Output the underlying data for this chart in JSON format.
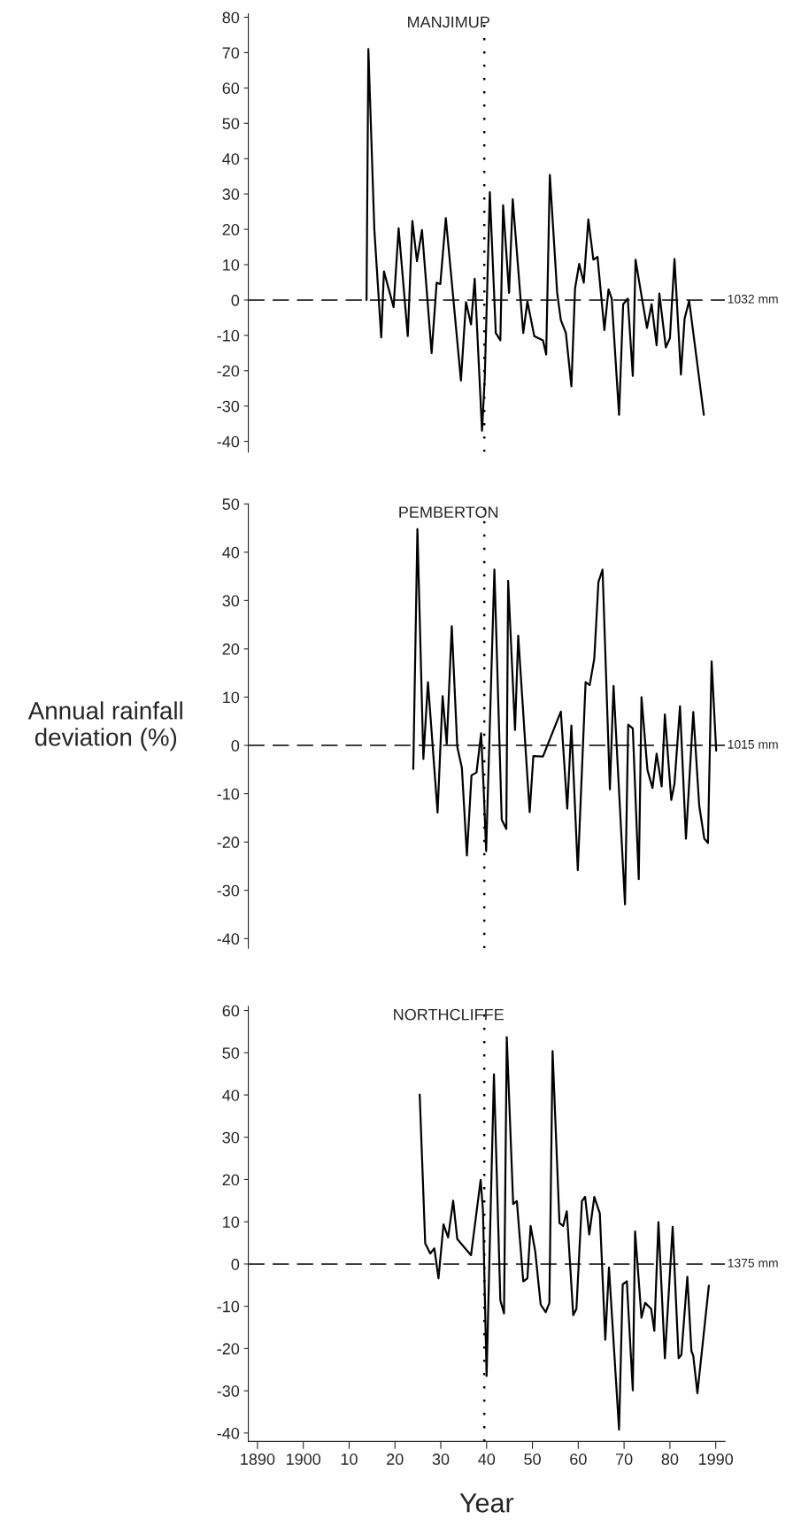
{
  "chart_data": [
    {
      "type": "line",
      "title": "MANJIMUP",
      "tick_labels": "y",
      "grid": false,
      "x": [
        1913.8,
        1914.2,
        1915.5,
        1917,
        1917.6,
        1919.7,
        1920.8,
        1922.8,
        1923.8,
        1924.8,
        1925.9,
        1928,
        1929.1,
        1929.9,
        1931.1,
        1934.4,
        1935.5,
        1936.6,
        1937.4,
        1939,
        1939.6,
        1940.7,
        1942,
        1943,
        1943.6,
        1944.9,
        1945.7,
        1948,
        1948.9,
        1950.4,
        1952.3,
        1953,
        1953.8,
        1955.4,
        1956.2,
        1957.3,
        1958.5,
        1959.3,
        1960.2,
        1961.2,
        1962.2,
        1963.3,
        1964.2,
        1965.7,
        1966.6,
        1967.3,
        1968.9,
        1969.8,
        1970.8,
        1971.9,
        1972.5,
        1973.7,
        1975,
        1976,
        1977.1,
        1977.7,
        1979.1,
        1980,
        1981,
        1982.4,
        1983.2,
        1984.2,
        1987.4
      ],
      "series": [
        {
          "color": "#000000",
          "values": [
            0,
            71,
            20,
            -10.6,
            8.1,
            -2,
            20.3,
            -10.2,
            22.4,
            11,
            19.8,
            -15,
            4.9,
            4.5,
            23.2,
            -22.8,
            -0.6,
            -6.9,
            6,
            -37,
            -22,
            30.5,
            -9.3,
            -11.4,
            26.8,
            2,
            28.5,
            -9.3,
            -0.4,
            -10.2,
            -11.4,
            -15.4,
            35.4,
            2,
            -5.7,
            -9.3,
            -24.4,
            3.3,
            10.2,
            4.9,
            22.8,
            11.4,
            12.2,
            -8.5,
            3,
            0.4,
            -32.5,
            -1.2,
            0.4,
            -21.5,
            11.4,
            2,
            -7.9,
            -1.2,
            -12.8,
            1.8,
            -13.4,
            -10.8,
            11.6,
            -21.1,
            -5.3,
            -0.2,
            -32.5
          ]
        }
      ],
      "xlim": [
        1888,
        1992
      ],
      "ylim": [
        -43,
        81
      ],
      "yticks": [
        -40,
        -30,
        -20,
        -10,
        0,
        10,
        20,
        30,
        40,
        50,
        60,
        70,
        80
      ],
      "ref_lines": [
        {
          "axis": "y",
          "value": 0,
          "label": "1032 mm",
          "line_style": "dashed",
          "color": "#000000"
        },
        {
          "axis": "x",
          "value": 1939.5,
          "line_style": "dotted",
          "color": "#000000"
        }
      ]
    },
    {
      "type": "line",
      "title": "PEMBERTON",
      "tick_labels": "y",
      "grid": false,
      "ylabel": "Annual rainfall\ndeviation (%)",
      "x": [
        1924,
        1924.9,
        1926.2,
        1927.2,
        1929.3,
        1930.4,
        1931.3,
        1932.4,
        1933.6,
        1934.6,
        1935.7,
        1936.7,
        1937.8,
        1938.8,
        1939.4,
        1939.9,
        1941.7,
        1943.3,
        1944.3,
        1944.7,
        1946.2,
        1946.9,
        1949.4,
        1950.2,
        1952.3,
        1956.2,
        1957.6,
        1958.5,
        1959.9,
        1961.6,
        1962.5,
        1963.5,
        1964.4,
        1965.3,
        1966.9,
        1967.7,
        1970.2,
        1970.9,
        1971.9,
        1973.2,
        1973.8,
        1975.1,
        1976.2,
        1977.1,
        1978.2,
        1978.9,
        1980.3,
        1981,
        1982.2,
        1983.5,
        1985.1,
        1986.4,
        1987.5,
        1988.3,
        1989.1,
        1990.1
      ],
      "series": [
        {
          "color": "#000000",
          "values": [
            -4.9,
            44.8,
            -2.8,
            13.1,
            -13.9,
            10.2,
            0.3,
            24.7,
            -0.3,
            -4.6,
            -22.8,
            -6.2,
            -5.6,
            2.5,
            -9.9,
            -21.9,
            36.4,
            -15.4,
            -17.3,
            34.1,
            3.2,
            22.7,
            -13.8,
            -2.2,
            -2.3,
            7,
            -13.1,
            4.1,
            -25.8,
            13.1,
            12.5,
            18,
            33.8,
            36.4,
            -9.1,
            12.3,
            -32.9,
            4.3,
            3.5,
            -27.7,
            10,
            -5.1,
            -8.8,
            -1.7,
            -8.5,
            6.4,
            -11.3,
            -7.9,
            8.1,
            -19.3,
            6.9,
            -12.5,
            -19.3,
            -20.2,
            17.4,
            -1.1
          ]
        }
      ],
      "xlim": [
        1888,
        1992
      ],
      "ylim": [
        -42,
        50
      ],
      "yticks": [
        -40,
        -30,
        -20,
        -10,
        0,
        10,
        20,
        30,
        40,
        50
      ],
      "ref_lines": [
        {
          "axis": "y",
          "value": 0,
          "label": "1015 mm",
          "line_style": "dashed",
          "color": "#000000"
        },
        {
          "axis": "x",
          "value": 1939.5,
          "line_style": "dotted",
          "color": "#000000"
        }
      ]
    },
    {
      "type": "line",
      "title": "NORTHCLIFFE",
      "grid": false,
      "xlabel": "Year",
      "x": [
        1925.4,
        1926.6,
        1927.7,
        1928.6,
        1929.5,
        1930.6,
        1931.6,
        1932.7,
        1933.6,
        1936.6,
        1938.7,
        1939.2,
        1940,
        1941.6,
        1943,
        1943.8,
        1944.4,
        1945.8,
        1946.6,
        1948,
        1948.9,
        1949.6,
        1950.6,
        1951.8,
        1952.9,
        1953.7,
        1954.4,
        1955.9,
        1956.7,
        1957.5,
        1958.9,
        1959.6,
        1960.8,
        1961.5,
        1962.4,
        1963.5,
        1964.7,
        1965.9,
        1966.7,
        1968.9,
        1969.7,
        1970.6,
        1971.9,
        1972.4,
        1973.8,
        1974.6,
        1975.9,
        1976.6,
        1977.5,
        1978.9,
        1980.6,
        1981.9,
        1982.5,
        1983.8,
        1984.7,
        1985.1,
        1986,
        1988.5
      ],
      "series": [
        {
          "color": "#000000",
          "values": [
            40.1,
            4.9,
            2.5,
            3.7,
            -3.4,
            9.4,
            6.3,
            15,
            5.9,
            2.1,
            19.9,
            12.8,
            -26.5,
            44.9,
            -8.6,
            -11.7,
            53.7,
            14.2,
            14.9,
            -4.1,
            -3.4,
            9,
            3.1,
            -9.6,
            -11.4,
            -9.2,
            50.4,
            9.7,
            9,
            12.5,
            -12.1,
            -10.6,
            14.9,
            15.9,
            7,
            15.9,
            12,
            -17.9,
            -0.8,
            -39.2,
            -4.8,
            -4.1,
            -29.9,
            7.7,
            -12.7,
            -9.2,
            -10.6,
            -15.8,
            9.9,
            -22.3,
            8.8,
            -22.3,
            -21.5,
            -3,
            -20.6,
            -21.7,
            -30.6,
            -5.1
          ]
        }
      ],
      "xlim": [
        1888,
        1992
      ],
      "xticks": [
        1890,
        1900,
        {
          "value": 1910,
          "label": "10"
        },
        {
          "value": 1920,
          "label": "20"
        },
        {
          "value": 1930,
          "label": "30"
        },
        {
          "value": 1940,
          "label": "40"
        },
        {
          "value": 1950,
          "label": "50"
        },
        {
          "value": 1960,
          "label": "60"
        },
        {
          "value": 1970,
          "label": "70"
        },
        {
          "value": 1980,
          "label": "80"
        },
        1990
      ],
      "ylim": [
        -42,
        61
      ],
      "yticks": [
        -40,
        -30,
        -20,
        -10,
        0,
        10,
        20,
        30,
        40,
        50,
        60
      ],
      "ref_lines": [
        {
          "axis": "y",
          "value": 0,
          "label": "1375 mm",
          "line_style": "dashed",
          "color": "#000000"
        },
        {
          "axis": "x",
          "value": 1939.5,
          "line_style": "dotted",
          "color": "#000000"
        }
      ]
    }
  ]
}
